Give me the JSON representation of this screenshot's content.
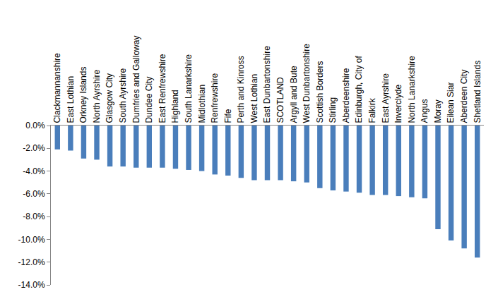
{
  "chart_data": {
    "type": "bar",
    "categories": [
      "Clackmannanshire",
      "East Lothian",
      "Orkney Islands",
      "North Ayrshire",
      "Glasgow City",
      "South Ayrshire",
      "Dumfries and Galloway",
      "Dundee City",
      "East Renfrewshire",
      "Highland",
      "South Lanarkshire",
      "Midlothian",
      "Renfrewshire",
      "Fife",
      "Perth and Kinross",
      "West Lothian",
      "East Dunbartonshire",
      "SCOTLAND",
      "Argyll and Bute",
      "West Dunbartonshire",
      "Scottish Borders",
      "Stirling",
      "Aberdeenshire",
      "Edinburgh, City of",
      "Falkirk",
      "East Ayrshire",
      "Inverclyde",
      "North Lanarkshire",
      "Angus",
      "Moray",
      "Eilean Siar",
      "Aberdeen City",
      "Shetland Islands"
    ],
    "values": [
      -2.1,
      -2.2,
      -2.9,
      -3.0,
      -3.6,
      -3.6,
      -3.7,
      -3.7,
      -3.7,
      -3.8,
      -3.9,
      -4.0,
      -4.3,
      -4.4,
      -4.6,
      -4.8,
      -4.8,
      -4.8,
      -4.9,
      -5.0,
      -5.5,
      -5.7,
      -5.8,
      -5.9,
      -6.1,
      -6.1,
      -6.2,
      -6.3,
      -6.4,
      -9.1,
      -10.1,
      -10.8,
      -11.6
    ],
    "color": "#4a7ebb",
    "ylim": [
      -14,
      0
    ],
    "yticks": [
      {
        "value": 0,
        "label": "0.0%"
      },
      {
        "value": -2,
        "label": "-2.0%"
      },
      {
        "value": -4,
        "label": "-4.0%"
      },
      {
        "value": -6,
        "label": "-6.0%"
      },
      {
        "value": -8,
        "label": "-8.0%"
      },
      {
        "value": -10,
        "label": "-10.0%"
      },
      {
        "value": -12,
        "label": "-12.0%"
      },
      {
        "value": -14,
        "label": "-14.0%"
      }
    ],
    "grid": false
  }
}
